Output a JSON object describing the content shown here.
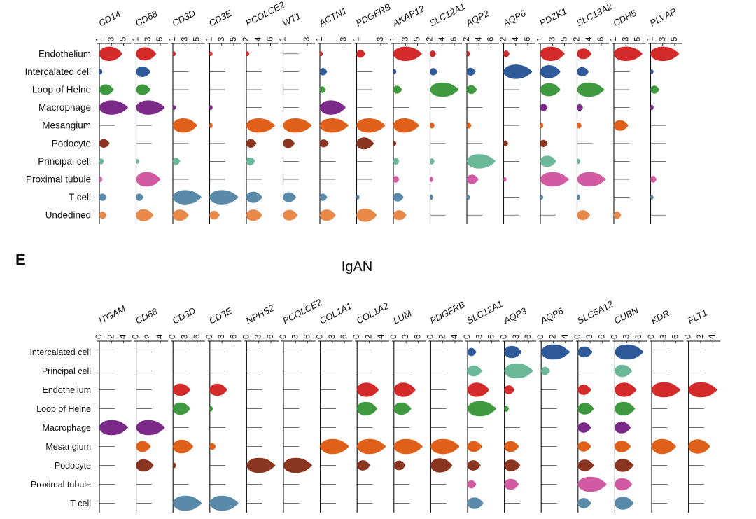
{
  "figure": {
    "panel_letter": "E",
    "panel_title": "IgAN"
  },
  "chart_data": [
    {
      "type": "violin",
      "title": "",
      "rows": [
        "Endothelium",
        "Intercalated cell",
        "Loop of Helne",
        "Macrophage",
        "Mesangium",
        "Podocyte",
        "Principal cell",
        "Proximal tubule",
        "T cell",
        "Undedined"
      ],
      "row_colors": [
        "#d42a2a",
        "#2e5a9a",
        "#3f9a3f",
        "#7b2a8a",
        "#e0601a",
        "#8a3520",
        "#6ab898",
        "#d25aa3",
        "#5a8aaa",
        "#e8894a"
      ],
      "genes": [
        {
          "name": "CD14",
          "ticks": [
            "1",
            "3",
            "5"
          ],
          "values": [
            0.8,
            0.1,
            0.5,
            1.0,
            0,
            0.35,
            0.15,
            0.1,
            0.25,
            0.25
          ]
        },
        {
          "name": "CD68",
          "ticks": [
            "1",
            "3",
            "5"
          ],
          "values": [
            0.7,
            0.5,
            0.5,
            1.0,
            0,
            0,
            0.05,
            0.85,
            0.25,
            0.6
          ]
        },
        {
          "name": "CD3D",
          "ticks": [
            "1",
            "3",
            "5"
          ],
          "values": [
            0.05,
            0,
            0,
            0.05,
            0.85,
            0,
            0.25,
            0,
            1.0,
            0.55
          ]
        },
        {
          "name": "CD3E",
          "ticks": [
            "1",
            "3",
            "5"
          ],
          "values": [
            0.05,
            0,
            0,
            0.05,
            0.1,
            0,
            0,
            0,
            1.0,
            0.35
          ]
        },
        {
          "name": "PCOLCE2",
          "ticks": [
            "2",
            "4",
            "6"
          ],
          "values": [
            0.05,
            0,
            0,
            0,
            1.0,
            0.35,
            0.3,
            0,
            0.55,
            0.55
          ]
        },
        {
          "name": "WT1",
          "ticks": [
            "1",
            "3"
          ],
          "values": [
            0,
            0,
            0,
            0,
            1.0,
            0.4,
            0,
            0,
            0.45,
            0.5
          ]
        },
        {
          "name": "ACTN1",
          "ticks": [
            "1",
            "3"
          ],
          "values": [
            0.05,
            0.25,
            0.2,
            0.9,
            1.0,
            0.3,
            0,
            0,
            0.25,
            0.55
          ]
        },
        {
          "name": "PDGFRB",
          "ticks": [
            "1",
            "3"
          ],
          "values": [
            0.3,
            0,
            0,
            0,
            1.0,
            0.6,
            0,
            0,
            0.05,
            0.7
          ]
        },
        {
          "name": "AKAP12",
          "ticks": [
            "1",
            "3",
            "5"
          ],
          "values": [
            1.0,
            0.1,
            0.3,
            0,
            0.9,
            0.05,
            0.2,
            0.2,
            0.35,
            0.45
          ]
        },
        {
          "name": "SLC12A1",
          "ticks": [
            "2",
            "4",
            "6"
          ],
          "values": [
            0.2,
            0.25,
            1.0,
            0,
            0.15,
            0,
            0.15,
            0.1,
            0.1,
            0
          ]
        },
        {
          "name": "AQP2",
          "ticks": [
            "2",
            "4",
            "6"
          ],
          "values": [
            0.1,
            0.3,
            0.35,
            0,
            0.15,
            0,
            1.0,
            0.4,
            0.1,
            0
          ]
        },
        {
          "name": "AQP6",
          "ticks": [
            "2",
            "4",
            "6"
          ],
          "values": [
            0.2,
            1.0,
            0,
            0,
            0,
            0.15,
            0,
            0.05,
            0,
            0
          ]
        },
        {
          "name": "PDZK1",
          "ticks": [
            "1",
            "3",
            "5"
          ],
          "values": [
            0.85,
            0.7,
            0.7,
            0.25,
            0.1,
            0.25,
            0.55,
            1.0,
            0.05,
            0
          ]
        },
        {
          "name": "SLC13A2",
          "ticks": [
            "2",
            "4",
            "6"
          ],
          "values": [
            0.5,
            0.4,
            0.95,
            0.2,
            0.15,
            0,
            0.1,
            1.0,
            0.1,
            0.45
          ]
        },
        {
          "name": "CDH5",
          "ticks": [
            "1",
            "3",
            "5"
          ],
          "values": [
            1.0,
            0,
            0,
            0,
            0.5,
            0,
            0,
            0,
            0,
            0.25
          ]
        },
        {
          "name": "PLVAP",
          "ticks": [
            "1",
            "3",
            "5"
          ],
          "values": [
            1.0,
            0.05,
            0.3,
            0.1,
            0,
            0,
            0,
            0.2,
            0.05,
            0
          ]
        }
      ]
    },
    {
      "type": "violin",
      "title": "IgAN",
      "rows": [
        "Intercalated cell",
        "Principal cell",
        "Endothelium",
        "Loop of Helne",
        "Macrophage",
        "Mesangium",
        "Podocyte",
        "Proximal tubule",
        "T cell"
      ],
      "row_colors": [
        "#2e5a9a",
        "#6ab898",
        "#d42a2a",
        "#3f9a3f",
        "#7b2a8a",
        "#e0601a",
        "#8a3520",
        "#d25aa3",
        "#5a8aaa"
      ],
      "genes": [
        {
          "name": "ITGAM",
          "ticks": [
            "0",
            "2",
            "4"
          ],
          "values": [
            0,
            0,
            0,
            0,
            1.0,
            0,
            0,
            0,
            0
          ]
        },
        {
          "name": "CD68",
          "ticks": [
            "0",
            "2",
            "4"
          ],
          "values": [
            0,
            0,
            0,
            0,
            1.0,
            0.5,
            0.6,
            0,
            0
          ]
        },
        {
          "name": "CD3D",
          "ticks": [
            "0",
            "3",
            "6"
          ],
          "values": [
            0,
            0,
            0.6,
            0.6,
            0,
            0.7,
            0.1,
            0,
            1.0
          ]
        },
        {
          "name": "CD3E",
          "ticks": [
            "0",
            "3",
            "6"
          ],
          "values": [
            0,
            0,
            0.6,
            0.1,
            0,
            0.2,
            0,
            0,
            1.0
          ]
        },
        {
          "name": "NPHS2",
          "ticks": [
            "0",
            "3",
            "6"
          ],
          "values": [
            0,
            0,
            0,
            0,
            0,
            0,
            1.0,
            0,
            0
          ]
        },
        {
          "name": "PCOLCE2",
          "ticks": [
            "0",
            "3",
            "6"
          ],
          "values": [
            0,
            0,
            0,
            0,
            0,
            0,
            1.0,
            0,
            0
          ]
        },
        {
          "name": "COL1A1",
          "ticks": [
            "0",
            "3",
            "6"
          ],
          "values": [
            0,
            0,
            0,
            0,
            0,
            1.0,
            0,
            0,
            0
          ]
        },
        {
          "name": "COL1A2",
          "ticks": [
            "0",
            "2",
            "4"
          ],
          "values": [
            0,
            0,
            0.75,
            0.7,
            0,
            1.0,
            0.45,
            0,
            0
          ]
        },
        {
          "name": "LUM",
          "ticks": [
            "0",
            "3",
            "6"
          ],
          "values": [
            0,
            0,
            0.75,
            0.6,
            0,
            1.0,
            0.4,
            0,
            0
          ]
        },
        {
          "name": "PDGFRB",
          "ticks": [
            "0",
            "2",
            "4"
          ],
          "values": [
            0,
            0,
            0,
            0,
            0,
            1.0,
            0.75,
            0,
            0
          ]
        },
        {
          "name": "SLC12A1",
          "ticks": [
            "0",
            "3",
            "6"
          ],
          "values": [
            0.3,
            0.5,
            0.75,
            1.0,
            0,
            0.5,
            0.45,
            0.3,
            0.55
          ]
        },
        {
          "name": "AQP3",
          "ticks": [
            "0",
            "3",
            "6"
          ],
          "values": [
            0.6,
            1.0,
            0.35,
            0.15,
            0,
            0.5,
            0.55,
            0.5,
            0
          ]
        },
        {
          "name": "AQP6",
          "ticks": [
            "0",
            "2",
            "4"
          ],
          "values": [
            1.0,
            0.3,
            0,
            0,
            0,
            0,
            0,
            0,
            0
          ]
        },
        {
          "name": "SLC5A12",
          "ticks": [
            "0",
            "3",
            "6"
          ],
          "values": [
            0.5,
            0,
            0.45,
            0.55,
            0.45,
            0.45,
            0.55,
            1.0,
            0.45
          ]
        },
        {
          "name": "CUBN",
          "ticks": [
            "0",
            "3",
            "6"
          ],
          "values": [
            1.0,
            0.6,
            0.75,
            0.7,
            0.55,
            0.55,
            0.65,
            0.6,
            0.65
          ]
        },
        {
          "name": "KDR",
          "ticks": [
            "0",
            "3",
            "6"
          ],
          "values": [
            0,
            0,
            1.0,
            0,
            0,
            0.85,
            0,
            0,
            0
          ]
        },
        {
          "name": "FLT1",
          "ticks": [
            "0",
            "2",
            "4"
          ],
          "values": [
            0,
            0,
            1.0,
            0,
            0,
            0.75,
            0,
            0,
            0
          ]
        }
      ]
    }
  ]
}
